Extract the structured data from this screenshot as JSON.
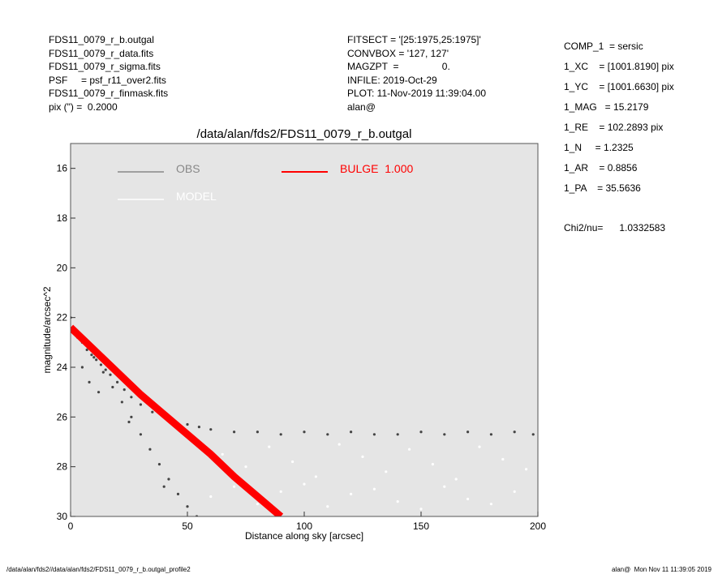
{
  "header": {
    "left": [
      "FDS11_0079_r_b.outgal",
      "FDS11_0079_r_data.fits",
      "FDS11_0079_r_sigma.fits",
      "PSF     = psf_r11_over2.fits",
      "FDS11_0079_r_finmask.fits",
      "pix (\") =  0.2000"
    ],
    "middle": [
      "FITSECT = '[25:1975,25:1975]'",
      "CONVBOX = '127, 127'",
      "MAGZPT  =                0.",
      "INFILE: 2019-Oct-29",
      "PLOT: 11-Nov-2019 11:39:04.00",
      "alan@"
    ],
    "params": [
      "COMP_1  = sersic",
      "1_XC    = [1001.8190] pix",
      "1_YC    = [1001.6630] pix",
      "1_MAG   = 15.2179",
      "1_RE    = 102.2893 pix",
      "1_N     = 1.2325",
      "1_AR    = 0.8856",
      "1_PA    = 35.5636"
    ],
    "chi2": "Chi2/nu=      1.0332583"
  },
  "footer": {
    "left": "/data/alan/fds2//data/alan/fds2/FDS11_0079_r_b.outgal_profile2",
    "right": "alan@  Mon Nov 11 11:39:05 2019"
  },
  "chart_data": {
    "type": "scatter",
    "title": "/data/alan/fds2/FDS11_0079_r_b.outgal",
    "xlabel": "Distance along sky [arcsec]",
    "ylabel": "magnitude/arcsec^2",
    "xlim": [
      0,
      200
    ],
    "ylim": [
      30,
      15
    ],
    "xticks": [
      0,
      50,
      100,
      150,
      200
    ],
    "yticks": [
      16,
      18,
      20,
      22,
      24,
      26,
      28,
      30
    ],
    "series": [
      {
        "name": "OBS",
        "color": "#444444",
        "legend_color": "#888888",
        "mode": "points",
        "x": [
          0,
          1,
          2,
          3,
          5,
          7,
          9,
          11,
          13,
          15,
          17,
          20,
          23,
          26,
          30,
          35,
          40,
          45,
          50,
          55,
          60,
          70,
          80,
          90,
          100,
          110,
          120,
          130,
          140,
          150,
          160,
          170,
          180,
          190,
          198,
          10,
          14,
          18,
          22,
          26,
          30,
          34,
          38,
          42,
          46,
          50,
          54,
          5,
          8,
          12,
          25,
          40
        ],
        "values": [
          22.0,
          22.4,
          22.6,
          22.8,
          23.0,
          23.3,
          23.5,
          23.7,
          23.9,
          24.1,
          24.3,
          24.6,
          24.9,
          25.2,
          25.5,
          25.8,
          26.0,
          26.2,
          26.3,
          26.4,
          26.5,
          26.6,
          26.6,
          26.7,
          26.6,
          26.7,
          26.6,
          26.7,
          26.7,
          26.6,
          26.7,
          26.6,
          26.7,
          26.6,
          26.7,
          23.6,
          24.2,
          24.8,
          25.4,
          26.0,
          26.7,
          27.3,
          27.9,
          28.5,
          29.1,
          29.6,
          30.0,
          24.0,
          24.6,
          25.0,
          26.2,
          28.8
        ]
      },
      {
        "name": "MODEL",
        "color": "#ffffff",
        "legend_color": "#ffffff",
        "mode": "points",
        "x": [
          55,
          65,
          75,
          85,
          95,
          105,
          115,
          125,
          135,
          145,
          155,
          165,
          175,
          185,
          195,
          60,
          70,
          80,
          90,
          100,
          110,
          120,
          130,
          140,
          150,
          160,
          170,
          180,
          190
        ],
        "values": [
          27.0,
          27.5,
          28.0,
          27.2,
          27.8,
          28.4,
          27.1,
          27.6,
          28.2,
          27.3,
          27.9,
          28.5,
          27.2,
          27.7,
          28.1,
          29.2,
          28.8,
          29.5,
          29.0,
          28.7,
          29.6,
          29.1,
          28.9,
          29.4,
          29.7,
          28.8,
          29.3,
          29.5,
          29.0
        ]
      },
      {
        "name": "BULGE  1.000",
        "color": "#ff0000",
        "legend_color": "#ff0000",
        "mode": "line",
        "x": [
          0,
          10,
          20,
          30,
          40,
          50,
          60,
          70,
          80,
          90
        ],
        "values": [
          22.4,
          23.3,
          24.2,
          25.1,
          25.9,
          26.7,
          27.5,
          28.4,
          29.2,
          30.0
        ]
      }
    ]
  }
}
